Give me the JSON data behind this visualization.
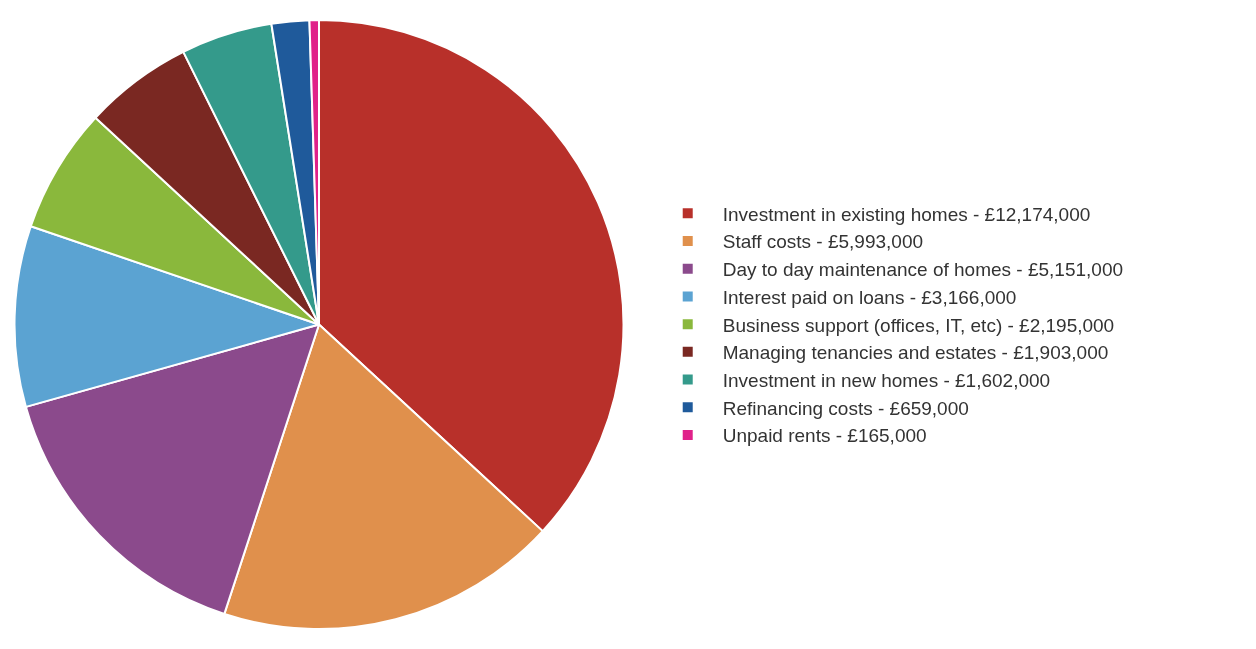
{
  "chart_data": {
    "type": "pie",
    "categories": [
      "Investment in existing homes - £12,174,000",
      "Staff costs - £5,993,000",
      "Day to day maintenance of homes - £5,151,000",
      "Interest paid on loans - £3,166,000",
      "Business support (offices, IT, etc) - £2,195,000",
      "Managing tenancies and estates - £1,903,000",
      "Investment in new homes - £1,602,000",
      "Refinancing costs - £659,000",
      "Unpaid rents - £165,000"
    ],
    "values": [
      36.87,
      18.16,
      15.61,
      9.59,
      6.65,
      5.77,
      4.85,
      2.0,
      0.5
    ],
    "colors": [
      "#b8302a",
      "#e0904c",
      "#8b4a8c",
      "#5ba3d2",
      "#8ab83c",
      "#7a2822",
      "#349a8b",
      "#1f5a9b",
      "#e0228a"
    ],
    "legend": "right"
  }
}
